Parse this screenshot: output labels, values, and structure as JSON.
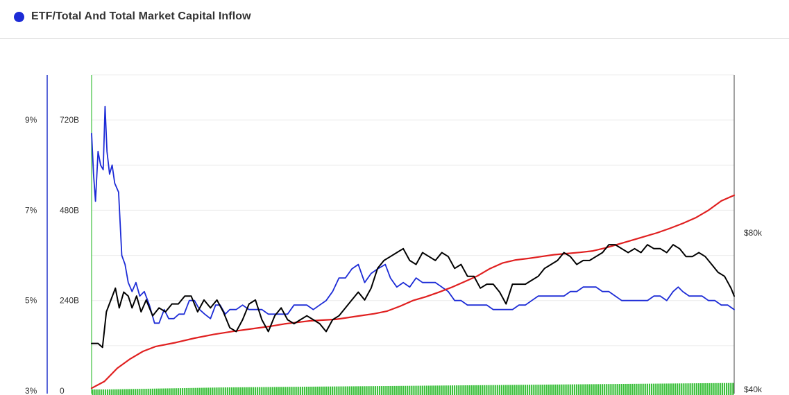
{
  "header": {
    "title": "ETF/Total And Total Market Capital Inflow",
    "legend_color": "#1c2bd6"
  },
  "chart_data": {
    "type": "line",
    "title": "ETF/Total And Total Market Capital Inflow",
    "grid": true,
    "colors": {
      "ratio": "#1c2bd6",
      "inflow": "#e02020",
      "price": "#000000",
      "bars": "#3cc03c",
      "left_axis": "#2233cc",
      "start_line": "#3cc03c"
    },
    "axes": {
      "pct": {
        "side": "left-outer",
        "ticks": [
          3,
          5,
          7,
          9
        ],
        "tick_labels": [
          "3%",
          "5%",
          "7%",
          "9%"
        ],
        "range": [
          3,
          10
        ]
      },
      "usd": {
        "side": "left-inner",
        "ticks": [
          0,
          240,
          480,
          720
        ],
        "tick_labels": [
          "0",
          "240B",
          "480B",
          "720B"
        ],
        "range": [
          0,
          840
        ]
      },
      "price": {
        "side": "right",
        "ticks": [
          40,
          80
        ],
        "tick_labels": [
          "$40k",
          "$80k"
        ],
        "range": [
          40,
          120
        ]
      }
    },
    "x_range": [
      0,
      100
    ],
    "series": [
      {
        "key": "ratio",
        "axis": "pct",
        "points": [
          [
            0,
            8.7
          ],
          [
            0.3,
            7.8
          ],
          [
            0.6,
            7.2
          ],
          [
            1,
            8.3
          ],
          [
            1.4,
            8.0
          ],
          [
            1.8,
            7.9
          ],
          [
            2.1,
            9.3
          ],
          [
            2.4,
            8.3
          ],
          [
            2.8,
            7.8
          ],
          [
            3.2,
            8.0
          ],
          [
            3.6,
            7.6
          ],
          [
            4.2,
            7.4
          ],
          [
            4.7,
            6.0
          ],
          [
            5.2,
            5.8
          ],
          [
            5.7,
            5.4
          ],
          [
            6.3,
            5.2
          ],
          [
            6.9,
            5.4
          ],
          [
            7.5,
            5.1
          ],
          [
            8.2,
            5.2
          ],
          [
            9,
            4.9
          ],
          [
            9.8,
            4.5
          ],
          [
            10.5,
            4.5
          ],
          [
            11.3,
            4.8
          ],
          [
            12,
            4.6
          ],
          [
            12.8,
            4.6
          ],
          [
            13.6,
            4.7
          ],
          [
            14.4,
            4.7
          ],
          [
            15.2,
            5.0
          ],
          [
            16,
            5.0
          ],
          [
            16.8,
            4.8
          ],
          [
            17.6,
            4.7
          ],
          [
            18.5,
            4.6
          ],
          [
            19.3,
            4.9
          ],
          [
            20,
            4.9
          ],
          [
            20.8,
            4.7
          ],
          [
            21.5,
            4.8
          ],
          [
            22.5,
            4.8
          ],
          [
            23.5,
            4.9
          ],
          [
            24.5,
            4.8
          ],
          [
            25.5,
            4.8
          ],
          [
            26.5,
            4.8
          ],
          [
            27.5,
            4.7
          ],
          [
            28.5,
            4.7
          ],
          [
            29.5,
            4.7
          ],
          [
            30.5,
            4.7
          ],
          [
            31.5,
            4.9
          ],
          [
            32.5,
            4.9
          ],
          [
            33.5,
            4.9
          ],
          [
            34.5,
            4.8
          ],
          [
            35.5,
            4.9
          ],
          [
            36.5,
            5.0
          ],
          [
            37.5,
            5.2
          ],
          [
            38.5,
            5.5
          ],
          [
            39.5,
            5.5
          ],
          [
            40.5,
            5.7
          ],
          [
            41.5,
            5.8
          ],
          [
            42.5,
            5.4
          ],
          [
            43.5,
            5.6
          ],
          [
            44.5,
            5.7
          ],
          [
            45.7,
            5.8
          ],
          [
            46.5,
            5.5
          ],
          [
            47.5,
            5.3
          ],
          [
            48.5,
            5.4
          ],
          [
            49.5,
            5.3
          ],
          [
            50.5,
            5.5
          ],
          [
            51.5,
            5.4
          ],
          [
            52.5,
            5.4
          ],
          [
            53.5,
            5.4
          ],
          [
            54.5,
            5.3
          ],
          [
            55.5,
            5.2
          ],
          [
            56.5,
            5.0
          ],
          [
            57.5,
            5.0
          ],
          [
            58.5,
            4.9
          ],
          [
            59.5,
            4.9
          ],
          [
            60.5,
            4.9
          ],
          [
            61.5,
            4.9
          ],
          [
            62.5,
            4.8
          ],
          [
            63.5,
            4.8
          ],
          [
            64.5,
            4.8
          ],
          [
            65.5,
            4.8
          ],
          [
            66.5,
            4.9
          ],
          [
            67.5,
            4.9
          ],
          [
            68.5,
            5.0
          ],
          [
            69.5,
            5.1
          ],
          [
            70.5,
            5.1
          ],
          [
            71.5,
            5.1
          ],
          [
            72.5,
            5.1
          ],
          [
            73.5,
            5.1
          ],
          [
            74.5,
            5.2
          ],
          [
            75.5,
            5.2
          ],
          [
            76.5,
            5.3
          ],
          [
            77.5,
            5.3
          ],
          [
            78.5,
            5.3
          ],
          [
            79.5,
            5.2
          ],
          [
            80.5,
            5.2
          ],
          [
            81.5,
            5.1
          ],
          [
            82.5,
            5.0
          ],
          [
            83.5,
            5.0
          ],
          [
            84.5,
            5.0
          ],
          [
            85.5,
            5.0
          ],
          [
            86.5,
            5.0
          ],
          [
            87.5,
            5.1
          ],
          [
            88.5,
            5.1
          ],
          [
            89.5,
            5.0
          ],
          [
            90.5,
            5.2
          ],
          [
            91.3,
            5.3
          ],
          [
            92,
            5.2
          ],
          [
            93,
            5.1
          ],
          [
            94,
            5.1
          ],
          [
            95,
            5.1
          ],
          [
            96,
            5.0
          ],
          [
            97,
            5.0
          ],
          [
            98,
            4.9
          ],
          [
            99,
            4.9
          ],
          [
            100,
            4.8
          ]
        ]
      },
      {
        "key": "inflow",
        "axis": "usd",
        "points": [
          [
            0,
            7
          ],
          [
            2,
            25
          ],
          [
            4,
            60
          ],
          [
            6,
            85
          ],
          [
            8,
            105
          ],
          [
            10,
            118
          ],
          [
            13,
            128
          ],
          [
            16,
            140
          ],
          [
            19,
            150
          ],
          [
            22,
            158
          ],
          [
            25,
            165
          ],
          [
            28,
            172
          ],
          [
            30,
            178
          ],
          [
            32,
            182
          ],
          [
            34,
            186
          ],
          [
            36,
            188
          ],
          [
            38,
            190
          ],
          [
            40,
            195
          ],
          [
            42,
            200
          ],
          [
            44,
            205
          ],
          [
            46,
            212
          ],
          [
            48,
            225
          ],
          [
            50,
            240
          ],
          [
            52,
            250
          ],
          [
            54,
            262
          ],
          [
            56,
            275
          ],
          [
            58,
            290
          ],
          [
            60,
            305
          ],
          [
            62,
            325
          ],
          [
            64,
            340
          ],
          [
            66,
            348
          ],
          [
            68,
            352
          ],
          [
            70,
            357
          ],
          [
            72,
            362
          ],
          [
            74,
            365
          ],
          [
            76,
            368
          ],
          [
            78,
            372
          ],
          [
            80,
            380
          ],
          [
            82,
            390
          ],
          [
            84,
            400
          ],
          [
            86,
            410
          ],
          [
            88,
            420
          ],
          [
            90,
            432
          ],
          [
            92,
            445
          ],
          [
            94,
            460
          ],
          [
            96,
            480
          ],
          [
            98,
            505
          ],
          [
            100,
            520
          ]
        ]
      },
      {
        "key": "price",
        "axis": "price",
        "points": [
          [
            0,
            52
          ],
          [
            1,
            52
          ],
          [
            1.7,
            51
          ],
          [
            2.3,
            60
          ],
          [
            3,
            63
          ],
          [
            3.7,
            66
          ],
          [
            4.3,
            61
          ],
          [
            5,
            65
          ],
          [
            5.7,
            64
          ],
          [
            6.3,
            61
          ],
          [
            7,
            64
          ],
          [
            7.7,
            60
          ],
          [
            8.5,
            63
          ],
          [
            9.5,
            59
          ],
          [
            10.5,
            61
          ],
          [
            11.5,
            60
          ],
          [
            12.5,
            62
          ],
          [
            13.5,
            62
          ],
          [
            14.5,
            64
          ],
          [
            15.5,
            64
          ],
          [
            16.5,
            60
          ],
          [
            17.5,
            63
          ],
          [
            18.5,
            61
          ],
          [
            19.5,
            63
          ],
          [
            20.5,
            60
          ],
          [
            21.5,
            56
          ],
          [
            22.5,
            55
          ],
          [
            23.5,
            58
          ],
          [
            24.5,
            62
          ],
          [
            25.5,
            63
          ],
          [
            26.5,
            58
          ],
          [
            27.5,
            55
          ],
          [
            28.5,
            59
          ],
          [
            29.5,
            61
          ],
          [
            30.5,
            58
          ],
          [
            31.5,
            57
          ],
          [
            32.5,
            58
          ],
          [
            33.5,
            59
          ],
          [
            34.5,
            58
          ],
          [
            35.5,
            57
          ],
          [
            36.5,
            55
          ],
          [
            37.5,
            58
          ],
          [
            38.5,
            59
          ],
          [
            39.5,
            61
          ],
          [
            40.5,
            63
          ],
          [
            41.5,
            65
          ],
          [
            42.5,
            63
          ],
          [
            43.5,
            66
          ],
          [
            44.5,
            71
          ],
          [
            45.5,
            73
          ],
          [
            46.5,
            74
          ],
          [
            47.5,
            75
          ],
          [
            48.5,
            76
          ],
          [
            49.5,
            73
          ],
          [
            50.5,
            72
          ],
          [
            51.5,
            75
          ],
          [
            52.5,
            74
          ],
          [
            53.5,
            73
          ],
          [
            54.5,
            75
          ],
          [
            55.5,
            74
          ],
          [
            56.5,
            71
          ],
          [
            57.5,
            72
          ],
          [
            58.5,
            69
          ],
          [
            59.5,
            69
          ],
          [
            60.5,
            66
          ],
          [
            61.5,
            67
          ],
          [
            62.5,
            67
          ],
          [
            63.5,
            65
          ],
          [
            64.5,
            62
          ],
          [
            65.5,
            67
          ],
          [
            66.5,
            67
          ],
          [
            67.5,
            67
          ],
          [
            68.5,
            68
          ],
          [
            69.5,
            69
          ],
          [
            70.5,
            71
          ],
          [
            71.5,
            72
          ],
          [
            72.5,
            73
          ],
          [
            73.5,
            75
          ],
          [
            74.5,
            74
          ],
          [
            75.5,
            72
          ],
          [
            76.5,
            73
          ],
          [
            77.5,
            73
          ],
          [
            78.5,
            74
          ],
          [
            79.5,
            75
          ],
          [
            80.5,
            77
          ],
          [
            81.5,
            77
          ],
          [
            82.5,
            76
          ],
          [
            83.5,
            75
          ],
          [
            84.5,
            76
          ],
          [
            85.5,
            75
          ],
          [
            86.5,
            77
          ],
          [
            87.5,
            76
          ],
          [
            88.5,
            76
          ],
          [
            89.5,
            75
          ],
          [
            90.5,
            77
          ],
          [
            91.5,
            76
          ],
          [
            92.5,
            74
          ],
          [
            93.5,
            74
          ],
          [
            94.5,
            75
          ],
          [
            95.5,
            74
          ],
          [
            96.5,
            72
          ],
          [
            97.5,
            70
          ],
          [
            98.5,
            69
          ],
          [
            99.5,
            66
          ],
          [
            100,
            64
          ]
        ]
      }
    ],
    "bars": {
      "key": "bars",
      "axis": "usd",
      "points": [
        [
          0,
          2
        ],
        [
          10,
          4
        ],
        [
          20,
          6
        ],
        [
          30,
          7
        ],
        [
          40,
          8
        ],
        [
          50,
          9
        ],
        [
          60,
          10
        ],
        [
          70,
          11
        ],
        [
          80,
          12
        ],
        [
          90,
          13
        ],
        [
          100,
          14
        ]
      ]
    }
  }
}
